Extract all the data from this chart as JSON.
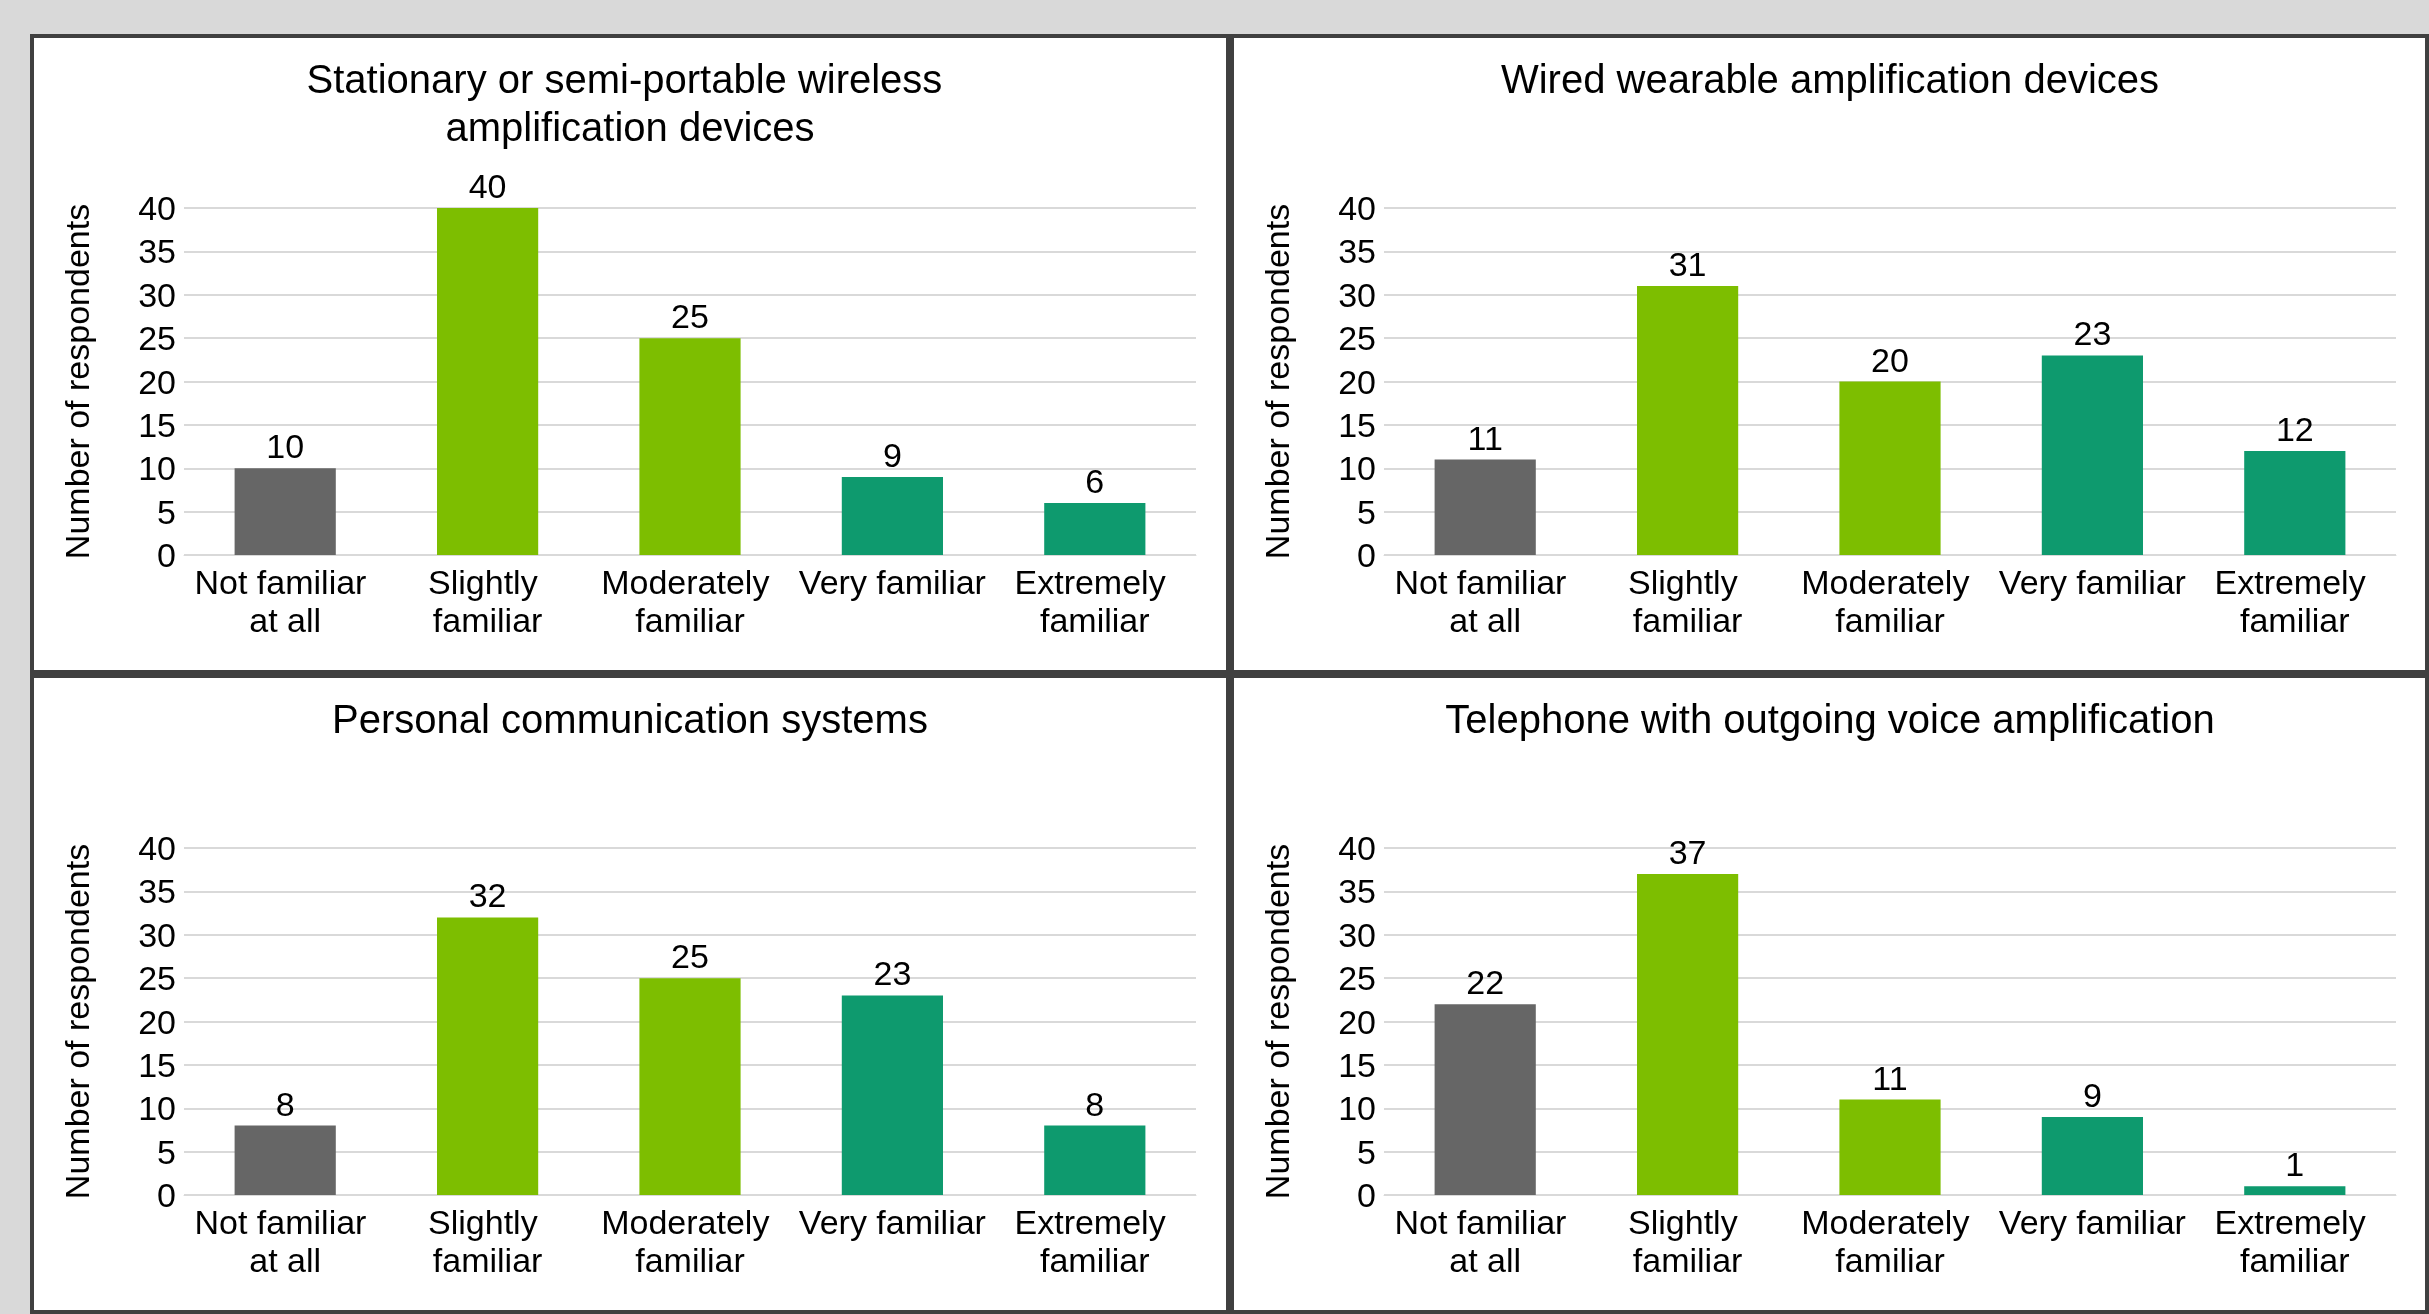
{
  "chart_data": [
    {
      "type": "bar",
      "title": "Stationary or semi-portable wireless amplification devices",
      "ylabel": "Number of respondents",
      "categories": [
        "Not familiar at all",
        "Slightly familiar",
        "Moderately familiar",
        "Very familiar",
        "Extremely familiar"
      ],
      "values": [
        10,
        40,
        25,
        9,
        6
      ],
      "colors": [
        "#666666",
        "#7dbe00",
        "#7dbe00",
        "#0e9a6e",
        "#0e9a6e"
      ],
      "ylim": [
        0,
        40
      ],
      "yticks": [
        0,
        5,
        10,
        15,
        20,
        25,
        30,
        35,
        40
      ],
      "grid": "y",
      "data_labels": true
    },
    {
      "type": "bar",
      "title": "Wired wearable amplification devices",
      "ylabel": "Number of respondents",
      "categories": [
        "Not familiar at all",
        "Slightly familiar",
        "Moderately familiar",
        "Very familiar",
        "Extremely familiar"
      ],
      "values": [
        11,
        31,
        20,
        23,
        12
      ],
      "colors": [
        "#666666",
        "#7dbe00",
        "#7dbe00",
        "#0e9a6e",
        "#0e9a6e"
      ],
      "ylim": [
        0,
        40
      ],
      "yticks": [
        0,
        5,
        10,
        15,
        20,
        25,
        30,
        35,
        40
      ],
      "grid": "y",
      "data_labels": true
    },
    {
      "type": "bar",
      "title": "Personal communication systems",
      "ylabel": "Number of respondents",
      "categories": [
        "Not familiar at all",
        "Slightly familiar",
        "Moderately familiar",
        "Very familiar",
        "Extremely familiar"
      ],
      "values": [
        8,
        32,
        25,
        23,
        8
      ],
      "colors": [
        "#666666",
        "#7dbe00",
        "#7dbe00",
        "#0e9a6e",
        "#0e9a6e"
      ],
      "ylim": [
        0,
        40
      ],
      "yticks": [
        0,
        5,
        10,
        15,
        20,
        25,
        30,
        35,
        40
      ],
      "grid": "y",
      "data_labels": true
    },
    {
      "type": "bar",
      "title": "Telephone with outgoing voice amplification",
      "ylabel": "Number of respondents",
      "categories": [
        "Not familiar at all",
        "Slightly familiar",
        "Moderately familiar",
        "Very familiar",
        "Extremely familiar"
      ],
      "values": [
        22,
        37,
        11,
        9,
        1
      ],
      "colors": [
        "#666666",
        "#7dbe00",
        "#7dbe00",
        "#0e9a6e",
        "#0e9a6e"
      ],
      "ylim": [
        0,
        40
      ],
      "yticks": [
        0,
        5,
        10,
        15,
        20,
        25,
        30,
        35,
        40
      ],
      "grid": "y",
      "data_labels": true
    }
  ]
}
